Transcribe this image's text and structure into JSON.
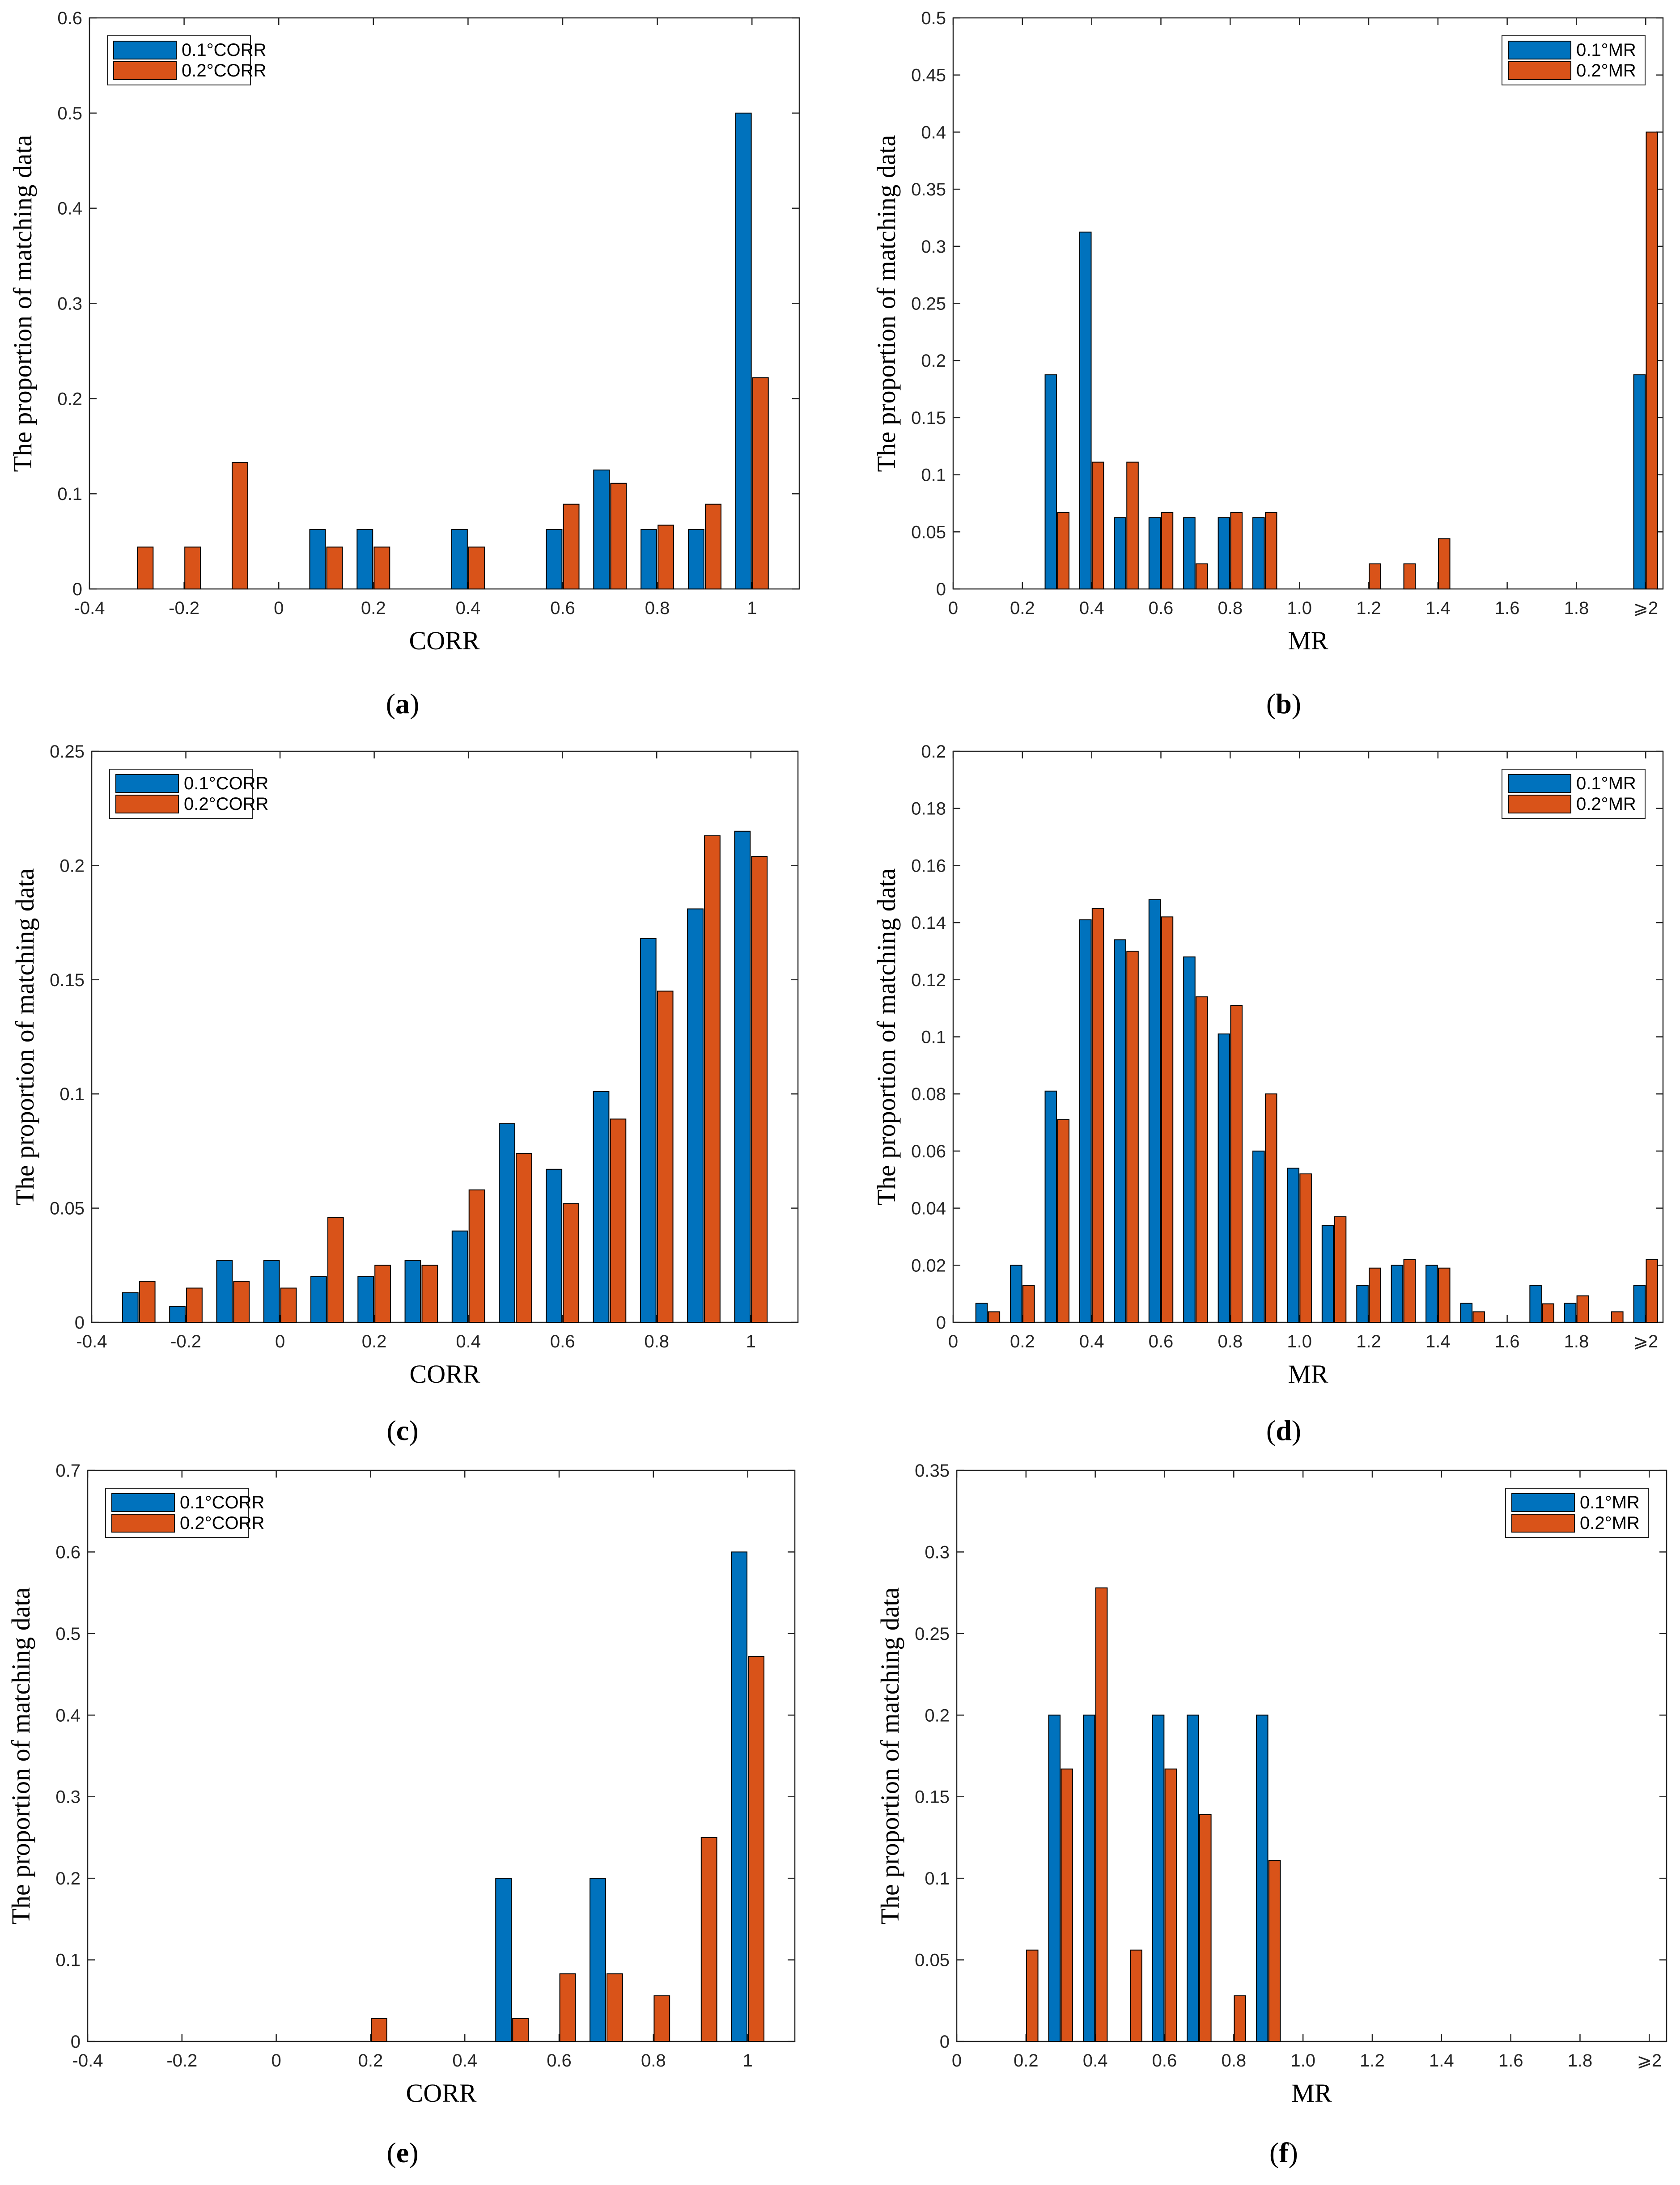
{
  "colors": {
    "series1": "#0072BD",
    "series2": "#D95319",
    "axis": "#262626"
  },
  "chart_data": [
    {
      "id": "a",
      "type": "bar",
      "caption": "(a)",
      "caption_paren_open": "(",
      "caption_letter": "a",
      "caption_paren_close": ")",
      "xlabel": "CORR",
      "ylabel": "The proportion of matching data",
      "xlim": [
        -0.4,
        1.1
      ],
      "ylim": [
        0,
        0.6
      ],
      "xticks": [
        -0.4,
        -0.2,
        0,
        0.2,
        0.4,
        0.6,
        0.8,
        1
      ],
      "xtick_labels": [
        "-0.4",
        "-0.2",
        "0",
        "0.2",
        "0.4",
        "0.6",
        "0.8",
        "1"
      ],
      "yticks": [
        0,
        0.1,
        0.2,
        0.3,
        0.4,
        0.5,
        0.6
      ],
      "ytick_labels": [
        "0",
        "0.1",
        "0.2",
        "0.3",
        "0.4",
        "0.5",
        "0.6"
      ],
      "legend": [
        "0.1°CORR",
        "0.2°CORR"
      ],
      "legend_position": "top-left",
      "x": [
        -0.3,
        -0.2,
        -0.1,
        0.1,
        0.2,
        0.4,
        0.6,
        0.7,
        0.8,
        0.9,
        1.0
      ],
      "series": [
        {
          "name": "0.1°CORR",
          "values": [
            0,
            0,
            0,
            0.0625,
            0.0625,
            0.0625,
            0.0625,
            0.125,
            0.0625,
            0.0625,
            0.5
          ]
        },
        {
          "name": "0.2°CORR",
          "values": [
            0.044,
            0.044,
            0.133,
            0.044,
            0.044,
            0.044,
            0.089,
            0.111,
            0.067,
            0.089,
            0.222
          ]
        }
      ]
    },
    {
      "id": "b",
      "type": "bar",
      "caption": "(b)",
      "caption_paren_open": "(",
      "caption_letter": "b",
      "caption_paren_close": ")",
      "xlabel": "MR",
      "ylabel": "The proportion of matching data",
      "xlim": [
        0,
        2.05
      ],
      "ylim": [
        0,
        0.5
      ],
      "xticks": [
        0,
        0.2,
        0.4,
        0.6,
        0.8,
        1.0,
        1.2,
        1.4,
        1.6,
        1.8,
        2.0
      ],
      "xtick_labels": [
        "0",
        "0.2",
        "0.4",
        "0.6",
        "0.8",
        "1.0",
        "1.2",
        "1.4",
        "1.6",
        "1.8",
        "⩾2"
      ],
      "yticks": [
        0,
        0.05,
        0.1,
        0.15,
        0.2,
        0.25,
        0.3,
        0.35,
        0.4,
        0.45,
        0.5
      ],
      "ytick_labels": [
        "0",
        "0.05",
        "0.1",
        "0.15",
        "0.2",
        "0.25",
        "0.3",
        "0.35",
        "0.4",
        "0.45",
        "0.5"
      ],
      "legend": [
        "0.1°MR",
        "0.2°MR"
      ],
      "legend_position": "top-right",
      "x": [
        0.3,
        0.4,
        0.5,
        0.6,
        0.7,
        0.8,
        0.9,
        1.2,
        1.3,
        1.4,
        2.0
      ],
      "series": [
        {
          "name": "0.1°MR",
          "values": [
            0.1875,
            0.3125,
            0.0625,
            0.0625,
            0.0625,
            0.0625,
            0.0625,
            0,
            0,
            0,
            0.1875
          ]
        },
        {
          "name": "0.2°MR",
          "values": [
            0.067,
            0.111,
            0.111,
            0.067,
            0.022,
            0.067,
            0.067,
            0.022,
            0.022,
            0.044,
            0.4
          ]
        }
      ]
    },
    {
      "id": "c",
      "type": "bar",
      "caption": "(c)",
      "caption_paren_open": "(",
      "caption_letter": "c",
      "caption_paren_close": ")",
      "xlabel": "CORR",
      "ylabel": "The proportion of matching data",
      "xlim": [
        -0.4,
        1.1
      ],
      "ylim": [
        0,
        0.25
      ],
      "xticks": [
        -0.4,
        -0.2,
        0,
        0.2,
        0.4,
        0.6,
        0.8,
        1
      ],
      "xtick_labels": [
        "-0.4",
        "-0.2",
        "0",
        "0.2",
        "0.4",
        "0.6",
        "0.8",
        "1"
      ],
      "yticks": [
        0,
        0.05,
        0.1,
        0.15,
        0.2,
        0.25
      ],
      "ytick_labels": [
        "0",
        "0.05",
        "0.1",
        "0.15",
        "0.2",
        "0.25"
      ],
      "legend": [
        "0.1°CORR",
        "0.2°CORR"
      ],
      "legend_position": "top-left",
      "x": [
        -0.3,
        -0.2,
        -0.1,
        0.0,
        0.1,
        0.2,
        0.3,
        0.4,
        0.5,
        0.6,
        0.7,
        0.8,
        0.9,
        1.0
      ],
      "series": [
        {
          "name": "0.1°CORR",
          "values": [
            0.013,
            0.007,
            0.027,
            0.027,
            0.02,
            0.02,
            0.027,
            0.04,
            0.087,
            0.067,
            0.101,
            0.168,
            0.181,
            0.215
          ]
        },
        {
          "name": "0.2°CORR",
          "values": [
            0.018,
            0.015,
            0.018,
            0.015,
            0.046,
            0.025,
            0.025,
            0.058,
            0.074,
            0.052,
            0.089,
            0.145,
            0.213,
            0.204
          ]
        }
      ]
    },
    {
      "id": "d",
      "type": "bar",
      "caption": "(d)",
      "caption_paren_open": "(",
      "caption_letter": "d",
      "caption_paren_close": ")",
      "xlabel": "MR",
      "ylabel": "The proportion of matching data",
      "xlim": [
        0,
        2.05
      ],
      "ylim": [
        0,
        0.2
      ],
      "xticks": [
        0,
        0.2,
        0.4,
        0.6,
        0.8,
        1.0,
        1.2,
        1.4,
        1.6,
        1.8,
        2.0
      ],
      "xtick_labels": [
        "0",
        "0.2",
        "0.4",
        "0.6",
        "0.8",
        "1.0",
        "1.2",
        "1.4",
        "1.6",
        "1.8",
        "⩾2"
      ],
      "yticks": [
        0,
        0.02,
        0.04,
        0.06,
        0.08,
        0.1,
        0.12,
        0.14,
        0.16,
        0.18,
        0.2
      ],
      "ytick_labels": [
        "0",
        "0.02",
        "0.04",
        "0.06",
        "0.08",
        "0.1",
        "0.12",
        "0.14",
        "0.16",
        "0.18",
        "0.2"
      ],
      "legend": [
        "0.1°MR",
        "0.2°MR"
      ],
      "legend_position": "top-right",
      "x": [
        0.1,
        0.2,
        0.3,
        0.4,
        0.5,
        0.6,
        0.7,
        0.8,
        0.9,
        1.0,
        1.1,
        1.2,
        1.3,
        1.4,
        1.5,
        1.7,
        1.8,
        1.9,
        2.0
      ],
      "series": [
        {
          "name": "0.1°MR",
          "values": [
            0.0067,
            0.02,
            0.081,
            0.141,
            0.134,
            0.148,
            0.128,
            0.101,
            0.06,
            0.054,
            0.034,
            0.013,
            0.02,
            0.02,
            0.0067,
            0.013,
            0.0067,
            0,
            0.013
          ]
        },
        {
          "name": "0.2°MR",
          "values": [
            0.0037,
            0.013,
            0.071,
            0.145,
            0.13,
            0.142,
            0.114,
            0.111,
            0.08,
            0.052,
            0.037,
            0.019,
            0.022,
            0.019,
            0.0037,
            0.0065,
            0.0093,
            0.0037,
            0.022
          ]
        }
      ]
    },
    {
      "id": "e",
      "type": "bar",
      "caption": "(e)",
      "caption_paren_open": "(",
      "caption_letter": "e",
      "caption_paren_close": ")",
      "xlabel": "CORR",
      "ylabel": "The proportion of matching data",
      "xlim": [
        -0.4,
        1.1
      ],
      "ylim": [
        0,
        0.7
      ],
      "xticks": [
        -0.4,
        -0.2,
        0,
        0.2,
        0.4,
        0.6,
        0.8,
        1
      ],
      "xtick_labels": [
        "-0.4",
        "-0.2",
        "0",
        "0.2",
        "0.4",
        "0.6",
        "0.8",
        "1"
      ],
      "yticks": [
        0,
        0.1,
        0.2,
        0.3,
        0.4,
        0.5,
        0.6,
        0.7
      ],
      "ytick_labels": [
        "0",
        "0.1",
        "0.2",
        "0.3",
        "0.4",
        "0.5",
        "0.6",
        "0.7"
      ],
      "legend": [
        "0.1°CORR",
        "0.2°CORR"
      ],
      "legend_position": "top-left",
      "x": [
        0.2,
        0.5,
        0.6,
        0.7,
        0.8,
        0.9,
        1.0
      ],
      "series": [
        {
          "name": "0.1°CORR",
          "values": [
            0,
            0.2,
            0,
            0.2,
            0,
            0,
            0.6
          ]
        },
        {
          "name": "0.2°CORR",
          "values": [
            0.028,
            0.028,
            0.083,
            0.083,
            0.056,
            0.25,
            0.472
          ]
        }
      ]
    },
    {
      "id": "f",
      "type": "bar",
      "caption": "(f)",
      "caption_paren_open": "(",
      "caption_letter": "f",
      "caption_paren_close": ")",
      "xlabel": "MR",
      "ylabel": "The proportion of matching data",
      "xlim": [
        0,
        2.05
      ],
      "ylim": [
        0,
        0.35
      ],
      "xticks": [
        0,
        0.2,
        0.4,
        0.6,
        0.8,
        1.0,
        1.2,
        1.4,
        1.6,
        1.8,
        2.0
      ],
      "xtick_labels": [
        "0",
        "0.2",
        "0.4",
        "0.6",
        "0.8",
        "1.0",
        "1.2",
        "1.4",
        "1.6",
        "1.8",
        "⩾2"
      ],
      "yticks": [
        0,
        0.05,
        0.1,
        0.15,
        0.2,
        0.25,
        0.3,
        0.35
      ],
      "ytick_labels": [
        "0",
        "0.05",
        "0.1",
        "0.15",
        "0.2",
        "0.25",
        "0.3",
        "0.35"
      ],
      "legend": [
        "0.1°MR",
        "0.2°MR"
      ],
      "legend_position": "top-right",
      "x": [
        0.2,
        0.3,
        0.4,
        0.5,
        0.6,
        0.7,
        0.8,
        0.9
      ],
      "series": [
        {
          "name": "0.1°MR",
          "values": [
            0,
            0.2,
            0.2,
            0,
            0.2,
            0.2,
            0,
            0.2
          ]
        },
        {
          "name": "0.2°MR",
          "values": [
            0.056,
            0.167,
            0.278,
            0.056,
            0.167,
            0.139,
            0.028,
            0.111
          ]
        }
      ]
    }
  ]
}
